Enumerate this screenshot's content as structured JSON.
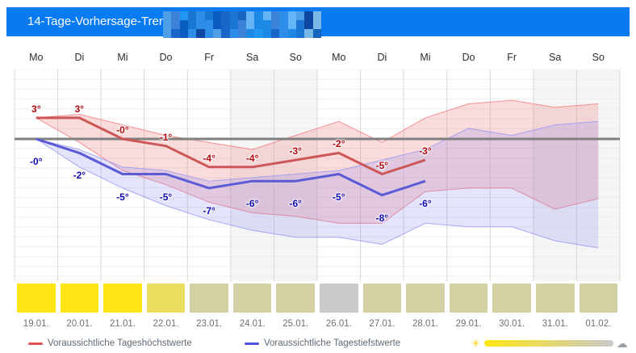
{
  "header": {
    "title": "14-Tage-Vorhersage-Trend f",
    "location_blurred": true,
    "bg_color": "#087bf2",
    "redaction_palette": [
      "#4d9fe8",
      "#1565c0",
      "#2196f3",
      "#0d47a1",
      "#64b5f6",
      "#1976d2",
      "#3b82d8",
      "#0a5cc2",
      "#7ab8e8",
      "#1e88e5",
      "#2e8de8",
      "#1766c8"
    ]
  },
  "days": [
    {
      "dow": "Mo",
      "date": "19.01."
    },
    {
      "dow": "Di",
      "date": "20.01."
    },
    {
      "dow": "Mi",
      "date": "21.01."
    },
    {
      "dow": "Do",
      "date": "22.01."
    },
    {
      "dow": "Fr",
      "date": "23.01."
    },
    {
      "dow": "Sa",
      "date": "24.01."
    },
    {
      "dow": "So",
      "date": "25.01."
    },
    {
      "dow": "Mo",
      "date": "26.01."
    },
    {
      "dow": "Di",
      "date": "27.01."
    },
    {
      "dow": "Mi",
      "date": "28.01."
    },
    {
      "dow": "Do",
      "date": "29.01."
    },
    {
      "dow": "Fr",
      "date": "30.01."
    },
    {
      "dow": "Sa",
      "date": "31.01."
    },
    {
      "dow": "So",
      "date": "01.02."
    }
  ],
  "chart_data": {
    "type": "line",
    "title": "14-Tage-Vorhersage-Trend",
    "unit": "°C",
    "x_categories": [
      "19.01.",
      "20.01.",
      "21.01.",
      "22.01.",
      "23.01.",
      "24.01.",
      "25.01.",
      "26.01.",
      "27.01.",
      "28.01.",
      "29.01.",
      "30.01.",
      "31.01.",
      "01.02."
    ],
    "ylim_approx": [
      -20,
      10
    ],
    "zero_line": 0,
    "grid": true,
    "weekend_columns": [
      5,
      6,
      12,
      13
    ],
    "series": [
      {
        "name": "max-temperature",
        "color": "#cc5757",
        "values": [
          3,
          3,
          0,
          -1,
          -4,
          -4,
          -3,
          -2,
          -5,
          -3,
          null,
          null,
          null,
          null
        ],
        "labels": [
          "3°",
          "3°",
          "-0°",
          "-1°",
          "-4°",
          "-4°",
          "-3°",
          "-2°",
          "-5°",
          "-3°"
        ]
      },
      {
        "name": "min-temperature",
        "color": "#5b5bd6",
        "values": [
          0,
          -2,
          -5,
          -5,
          -7,
          -6,
          -6,
          -5,
          -8,
          -6,
          null,
          null,
          null,
          null
        ],
        "labels": [
          "-0°",
          "-2°",
          "-5°",
          "-5°",
          "-7°",
          "-6°",
          "-6°",
          "-5°",
          "-8°",
          "-6°"
        ]
      }
    ],
    "bands": [
      {
        "name": "max-uncertainty-band",
        "fill": "rgba(240,128,128,0.28)",
        "edge": "rgba(244,122,122,0.8)",
        "upper": [
          3,
          3.5,
          2,
          0.5,
          -0.5,
          -1.5,
          0.5,
          2.5,
          -0.5,
          3,
          5,
          5.5,
          4.5,
          5
        ],
        "lower": [
          3,
          -0.5,
          -4.5,
          -6.5,
          -9,
          -10.5,
          -11,
          -12,
          -12,
          -7.5,
          -7,
          -7,
          -10,
          -8.5
        ]
      },
      {
        "name": "min-uncertainty-band",
        "fill": "rgba(130,130,240,0.22)",
        "edge": "rgba(150,150,245,0.8)",
        "upper": [
          0,
          -1.5,
          -4,
          -4.5,
          -6,
          -5.5,
          -5,
          -4.5,
          -3,
          -1.5,
          1.5,
          0.5,
          2,
          2.5
        ],
        "lower": [
          0,
          -4,
          -7,
          -9.5,
          -11.5,
          -13,
          -14,
          -14,
          -15,
          -12,
          -12.5,
          -12.5,
          -14.5,
          -15.5
        ]
      }
    ],
    "sun_bar_colors": [
      "#ffe612",
      "#ffe612",
      "#ffe612",
      "#eade5e",
      "#d3d0a4",
      "#d3d0a4",
      "#d3d0a4",
      "#c9c9c9",
      "#d3d0a4",
      "#d3d0a4",
      "#d3d0a4",
      "#d3d0a4",
      "#d3d0a4",
      "#d3d0a4"
    ],
    "colors": {
      "zero_line": "#7f7f7f",
      "grid_minor": "#ededed",
      "grid_column": "#d8d8d8",
      "weekend_bg": "#f5f5f5",
      "max_label": "#b00a10",
      "min_label": "#100ab0"
    }
  },
  "legend": {
    "items": [
      {
        "label": "Voraussichtliche Tageshöchstwerte",
        "marker_color": "#e05252"
      },
      {
        "label": "Voraussichtliche Tagestiefstwerte",
        "marker_color": "#5252e0"
      }
    ],
    "sunshine": {
      "sun_icon": "☀",
      "cloud_icon": "☁"
    }
  }
}
